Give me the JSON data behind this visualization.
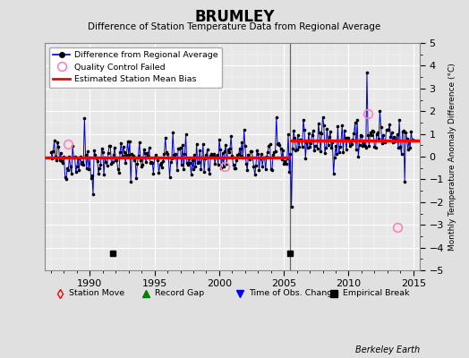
{
  "title": "BRUMLEY",
  "subtitle": "Difference of Station Temperature Data from Regional Average",
  "ylabel": "Monthly Temperature Anomaly Difference (°C)",
  "xlim": [
    1986.5,
    2015.5
  ],
  "ylim": [
    -5,
    5
  ],
  "yticks": [
    -5,
    -4,
    -3,
    -2,
    -1,
    0,
    1,
    2,
    3,
    4,
    5
  ],
  "xticks": [
    1990,
    1995,
    2000,
    2005,
    2010,
    2015
  ],
  "bg_color": "#e0e0e0",
  "plot_bg_color": "#e8e8e8",
  "grid_color": "#ffffff",
  "line_color": "#0000cc",
  "marker_color": "#000000",
  "bias_color": "#ff0000",
  "bias_early": -0.05,
  "bias_late": 0.72,
  "break_year": 2005.5,
  "empirical_break_years": [
    1991.75,
    2005.5
  ],
  "empirical_break_y": -4.25,
  "qc_failed_years": [
    1988.3,
    2000.4,
    2011.5,
    2013.75
  ],
  "qc_failed_values": [
    0.55,
    -0.42,
    1.9,
    -3.1
  ],
  "vertical_line_year": 2005.5,
  "berkeley_earth_text": "Berkeley Earth",
  "seed": 42
}
